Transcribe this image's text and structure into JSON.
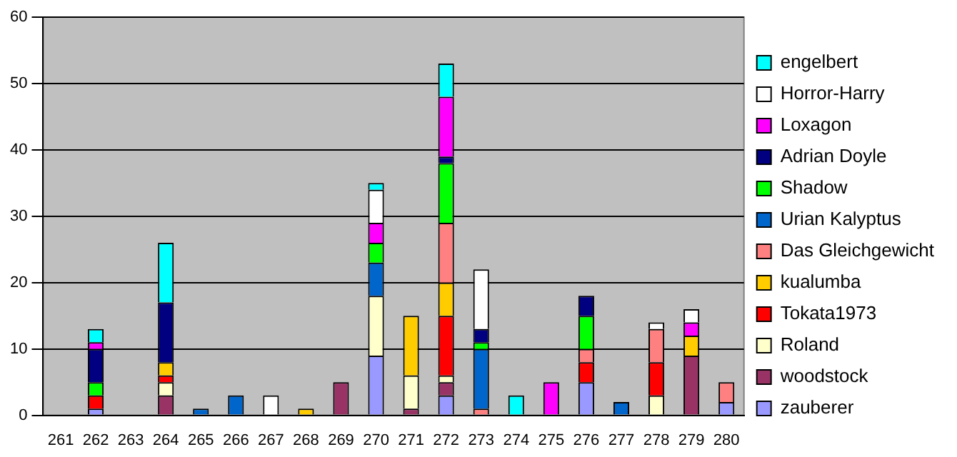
{
  "chart_data": {
    "type": "bar",
    "stacked": true,
    "categories": [
      "261",
      "262",
      "263",
      "264",
      "265",
      "266",
      "267",
      "268",
      "269",
      "270",
      "271",
      "272",
      "273",
      "274",
      "275",
      "276",
      "277",
      "278",
      "279",
      "280"
    ],
    "ylim": [
      0,
      60
    ],
    "yticks": [
      0,
      10,
      20,
      30,
      40,
      50,
      60
    ],
    "grid": "y",
    "legend": "right",
    "series": [
      {
        "name": "zauberer",
        "color": "#9999ff",
        "values": [
          null,
          1,
          null,
          null,
          null,
          null,
          null,
          null,
          null,
          9,
          null,
          3,
          null,
          null,
          null,
          5,
          null,
          null,
          null,
          2
        ]
      },
      {
        "name": "woodstock",
        "color": "#993366",
        "values": [
          null,
          null,
          null,
          3,
          null,
          null,
          null,
          null,
          5,
          null,
          1,
          2,
          null,
          null,
          null,
          null,
          null,
          null,
          9,
          null
        ]
      },
      {
        "name": "Roland",
        "color": "#ffffcc",
        "values": [
          null,
          null,
          null,
          2,
          null,
          null,
          null,
          null,
          null,
          9,
          5,
          1,
          null,
          null,
          null,
          null,
          null,
          3,
          null,
          null
        ]
      },
      {
        "name": "Tokata1973",
        "color": "#ff0000",
        "values": [
          null,
          2,
          null,
          1,
          null,
          null,
          null,
          null,
          null,
          null,
          null,
          9,
          null,
          null,
          null,
          3,
          null,
          5,
          null,
          null
        ]
      },
      {
        "name": "kualumba",
        "color": "#ffcc00",
        "values": [
          null,
          null,
          null,
          2,
          null,
          null,
          null,
          1,
          null,
          null,
          9,
          5,
          null,
          null,
          null,
          null,
          null,
          null,
          3,
          null
        ]
      },
      {
        "name": "Das Gleichgewicht",
        "color": "#ff8080",
        "values": [
          null,
          null,
          null,
          null,
          null,
          null,
          null,
          null,
          null,
          null,
          null,
          9,
          1,
          null,
          null,
          2,
          null,
          5,
          null,
          3
        ]
      },
      {
        "name": "Urian Kalyptus",
        "color": "#0066cc",
        "values": [
          null,
          null,
          null,
          null,
          1,
          3,
          null,
          null,
          null,
          5,
          null,
          null,
          9,
          null,
          null,
          null,
          2,
          null,
          null,
          null
        ]
      },
      {
        "name": "Shadow",
        "color": "#00ff00",
        "values": [
          null,
          2,
          null,
          null,
          null,
          null,
          null,
          null,
          null,
          3,
          null,
          9,
          1,
          null,
          null,
          5,
          null,
          null,
          null,
          null
        ]
      },
      {
        "name": "Adrian Doyle",
        "color": "#000080",
        "values": [
          null,
          5,
          null,
          9,
          null,
          null,
          null,
          null,
          null,
          null,
          null,
          1,
          2,
          null,
          null,
          3,
          null,
          null,
          null,
          null
        ]
      },
      {
        "name": "Loxagon",
        "color": "#ff00ff",
        "values": [
          null,
          1,
          null,
          null,
          null,
          null,
          null,
          null,
          null,
          3,
          null,
          9,
          null,
          null,
          5,
          null,
          null,
          null,
          2,
          null
        ]
      },
      {
        "name": "Horror-Harry",
        "color": "#ffffff",
        "values": [
          null,
          null,
          null,
          null,
          null,
          null,
          3,
          null,
          null,
          5,
          null,
          null,
          9,
          null,
          null,
          null,
          null,
          1,
          2,
          null
        ]
      },
      {
        "name": "engelbert",
        "color": "#00ffff",
        "values": [
          null,
          2,
          null,
          9,
          null,
          null,
          null,
          null,
          null,
          1,
          null,
          5,
          null,
          3,
          null,
          null,
          null,
          null,
          null,
          null
        ]
      }
    ]
  }
}
